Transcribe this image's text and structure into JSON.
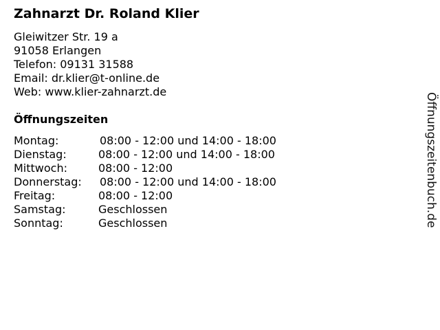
{
  "business": {
    "name": "Zahnarzt Dr. Roland Klier",
    "street": "Gleiwitzer Str. 19 a",
    "city": "91058 Erlangen",
    "phone": "Telefon: 09131 31588",
    "email": "Email: dr.klier@t-online.de",
    "web": "Web: www.klier-zahnarzt.de"
  },
  "hours": {
    "heading": "Öffnungszeiten",
    "rows": [
      {
        "day": "Montag:",
        "time": "08:00 - 12:00 und 14:00 - 18:00"
      },
      {
        "day": "Dienstag:",
        "time": "08:00 - 12:00 und 14:00 - 18:00"
      },
      {
        "day": "Mittwoch:",
        "time": "08:00 - 12:00"
      },
      {
        "day": "Donnerstag:",
        "time": "08:00 - 12:00 und 14:00 - 18:00"
      },
      {
        "day": "Freitag:",
        "time": "08:00 - 12:00"
      },
      {
        "day": "Samstag:",
        "time": "Geschlossen"
      },
      {
        "day": "Sonntag:",
        "time": "Geschlossen"
      }
    ]
  },
  "watermark": "Öffnungszeitenbuch.de"
}
